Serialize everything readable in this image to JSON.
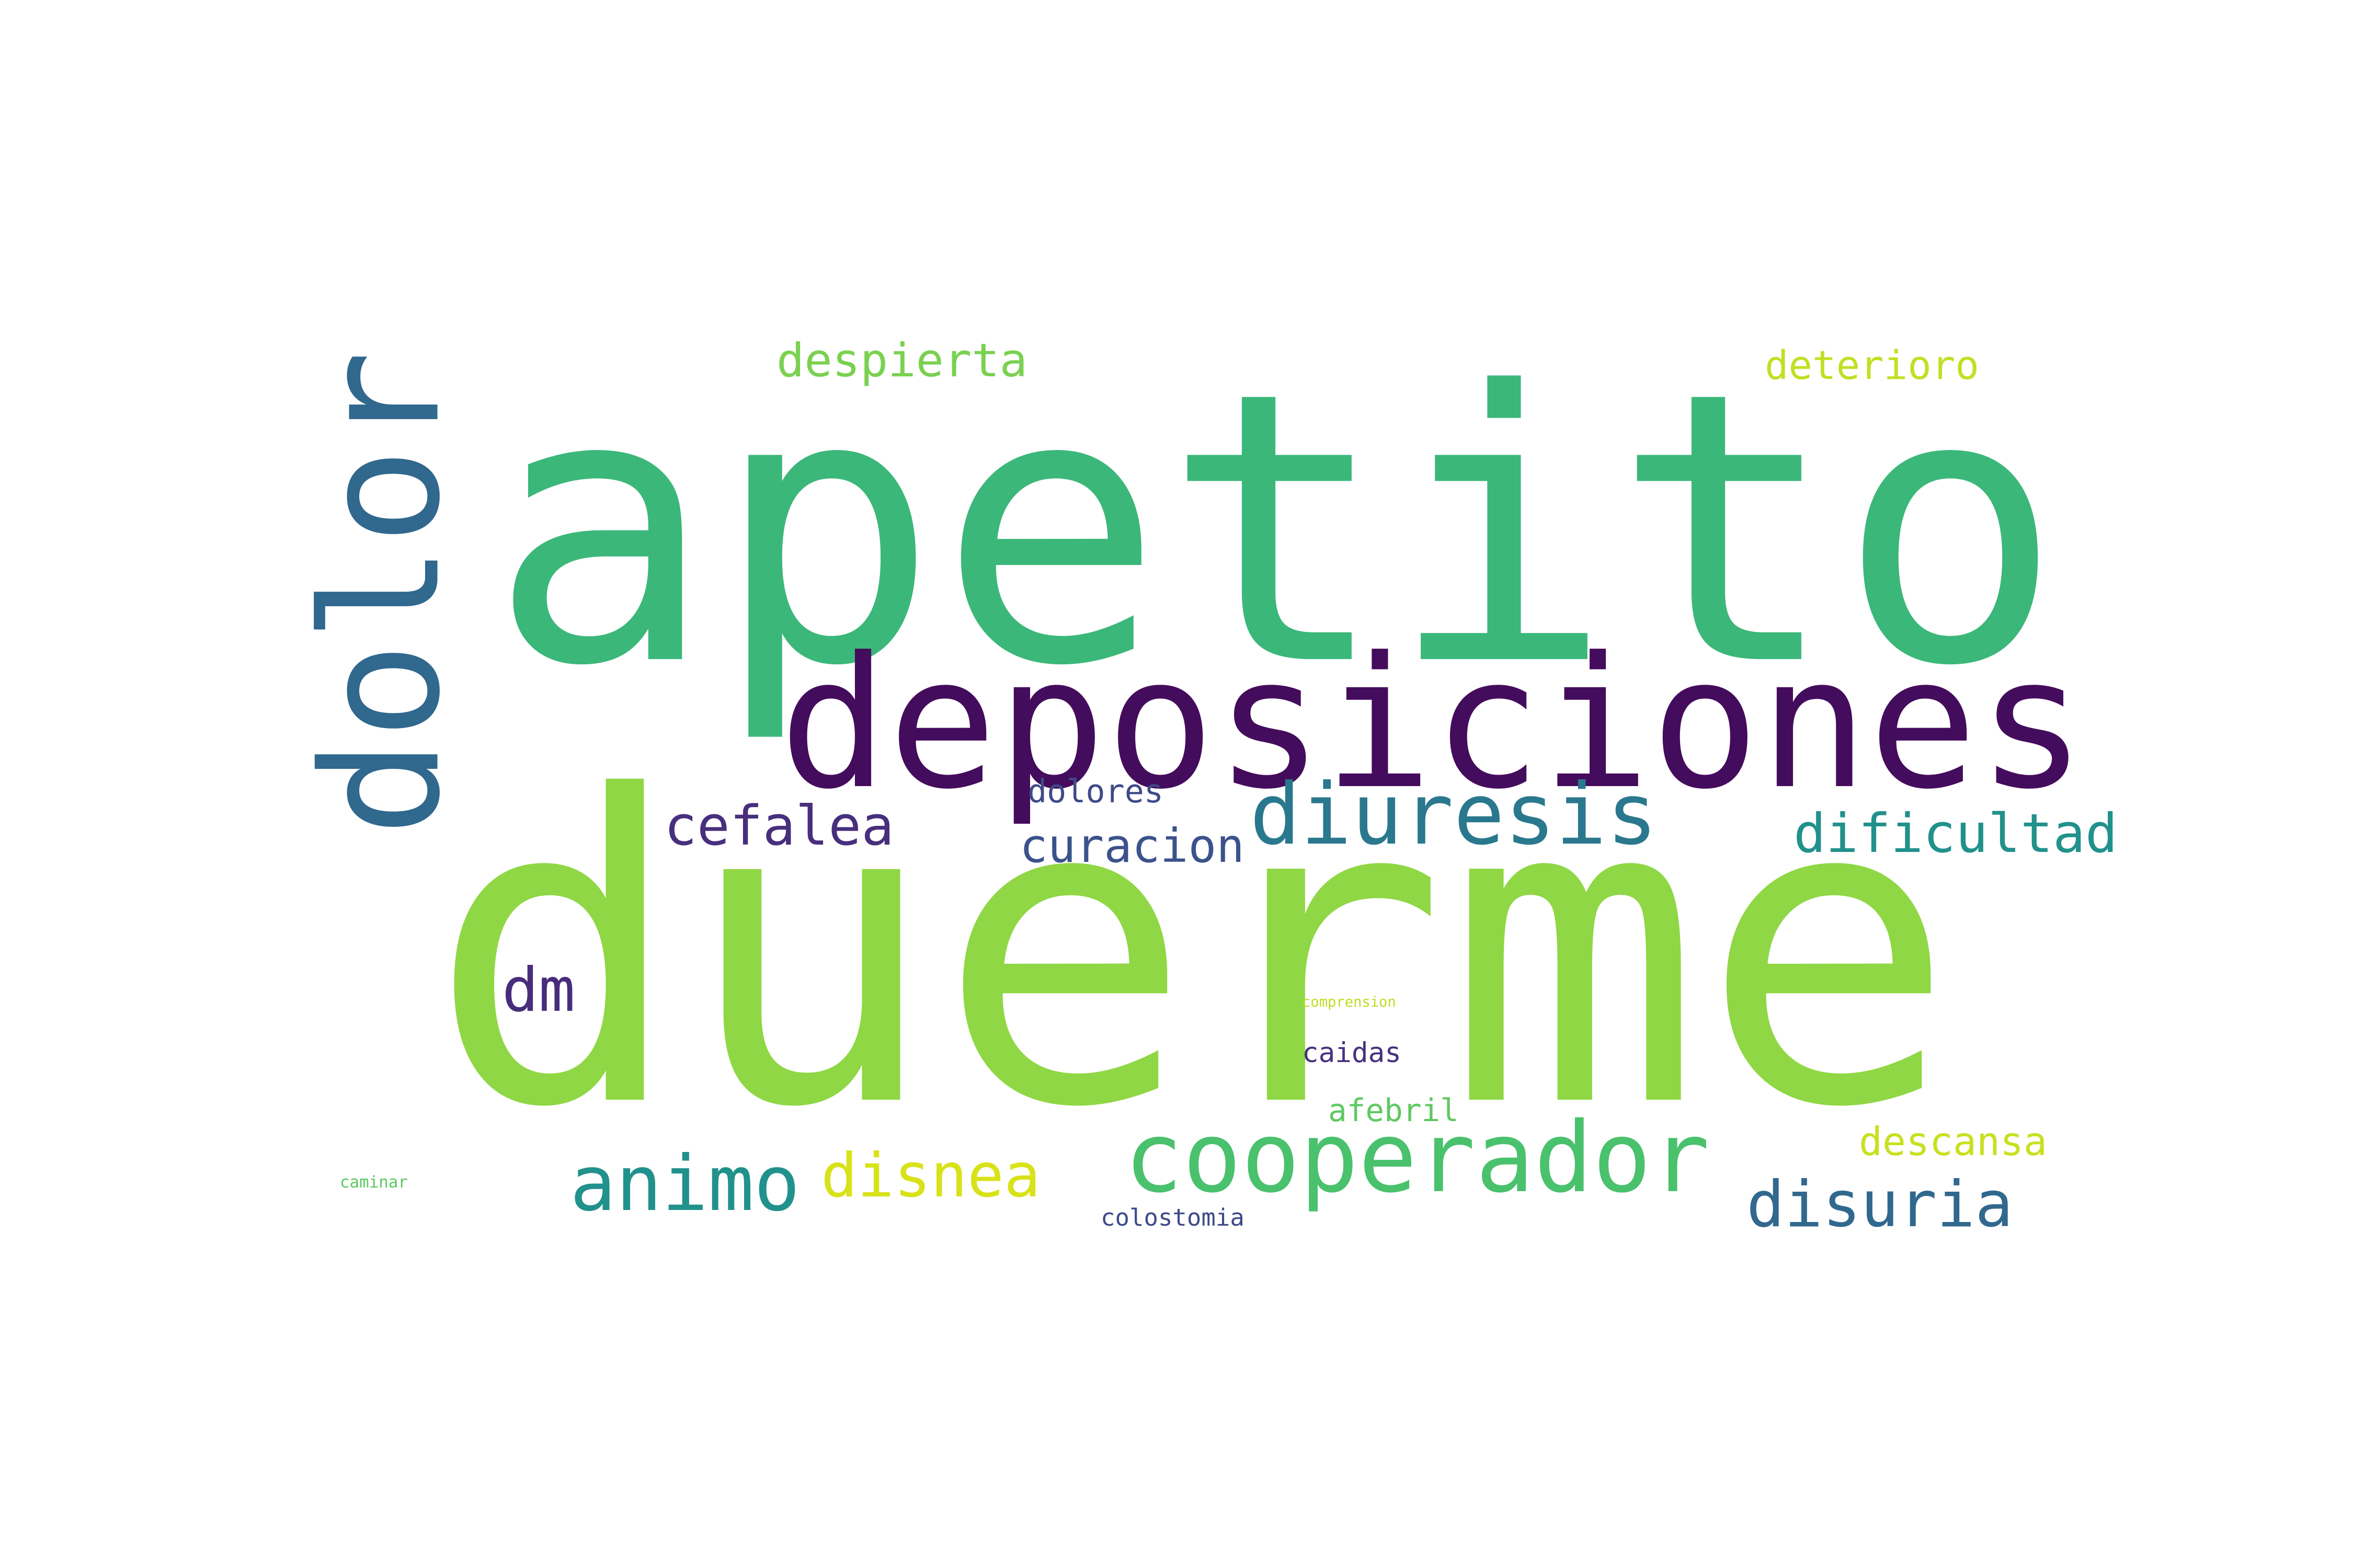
{
  "words": [
    {
      "id": "apetito",
      "text": "apetito",
      "color": "#3bb77a",
      "orientation": "horizontal"
    },
    {
      "id": "duerme",
      "text": "duerme",
      "color": "#8fd744",
      "orientation": "horizontal"
    },
    {
      "id": "deposiciones",
      "text": "deposiciones",
      "color": "#440c5c",
      "orientation": "horizontal"
    },
    {
      "id": "dolor",
      "text": "dolor",
      "color": "#30688e",
      "orientation": "vertical"
    },
    {
      "id": "cooperador",
      "text": "cooperador",
      "color": "#4ac16d",
      "orientation": "horizontal"
    },
    {
      "id": "diuresis",
      "text": "diuresis",
      "color": "#2a788e",
      "orientation": "horizontal"
    },
    {
      "id": "animo",
      "text": "animo",
      "color": "#21918c",
      "orientation": "horizontal"
    },
    {
      "id": "disnea",
      "text": "disnea",
      "color": "#d8e219",
      "orientation": "horizontal"
    },
    {
      "id": "disuria",
      "text": "disuria",
      "color": "#31688e",
      "orientation": "horizontal"
    },
    {
      "id": "dificultad",
      "text": "dificultad",
      "color": "#21918c",
      "orientation": "horizontal"
    },
    {
      "id": "cefalea",
      "text": "cefalea",
      "color": "#472f7d",
      "orientation": "horizontal"
    },
    {
      "id": "curacion",
      "text": "curacion",
      "color": "#3b528b",
      "orientation": "horizontal"
    },
    {
      "id": "despierta",
      "text": "despierta",
      "color": "#7ad151",
      "orientation": "horizontal"
    },
    {
      "id": "deterioro",
      "text": "deterioro",
      "color": "#c2df23",
      "orientation": "horizontal"
    },
    {
      "id": "dm",
      "text": "dm",
      "color": "#472d7b",
      "orientation": "horizontal"
    },
    {
      "id": "dolores",
      "text": "dolores",
      "color": "#3e4a89",
      "orientation": "horizontal"
    },
    {
      "id": "caidas",
      "text": "caidas",
      "color": "#46327e",
      "orientation": "horizontal"
    },
    {
      "id": "descansa",
      "text": "descansa",
      "color": "#c8e020",
      "orientation": "horizontal"
    },
    {
      "id": "afebril",
      "text": "afebril",
      "color": "#5ec962",
      "orientation": "horizontal"
    },
    {
      "id": "colostomia",
      "text": "colostomia",
      "color": "#3e4989",
      "orientation": "horizontal"
    },
    {
      "id": "comprension",
      "text": "comprension",
      "color": "#bddf26",
      "orientation": "horizontal"
    },
    {
      "id": "caminar",
      "text": "caminar",
      "color": "#5ec962",
      "orientation": "horizontal"
    }
  ]
}
